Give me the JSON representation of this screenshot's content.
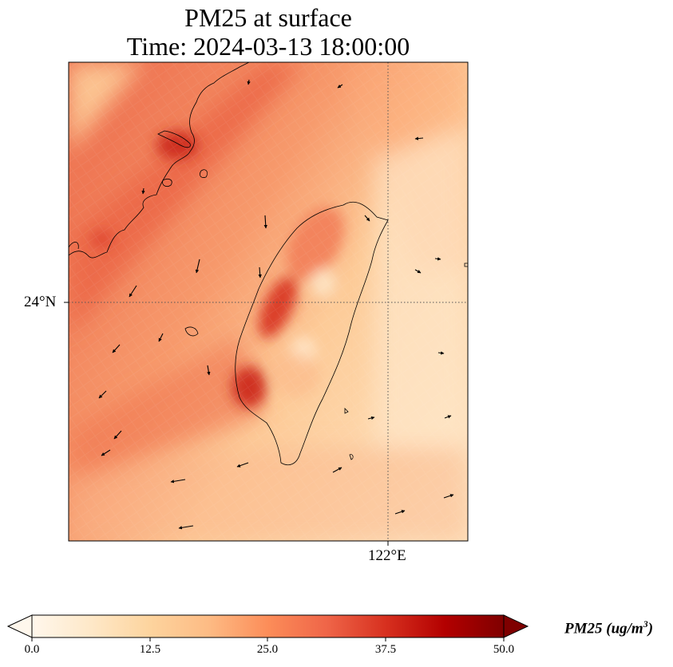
{
  "title": {
    "line1": "PM25 at surface",
    "line2": "Time: 2024-03-13 18:00:00"
  },
  "map": {
    "lat_label": "24°N",
    "lon_label": "122°E",
    "gridlines": "dotted",
    "colormap": "OrRd"
  },
  "colorbar": {
    "label": "PM25 (ug/m",
    "label_sup": "3",
    "label_close": ")",
    "ticks": [
      "0.0",
      "12.5",
      "25.0",
      "37.5",
      "50.0"
    ],
    "min": 0.0,
    "max": 50.0,
    "extend": "both",
    "colors": [
      "#fff7ec",
      "#fee8c8",
      "#fdd49e",
      "#fdbb84",
      "#fc8d59",
      "#ef6548",
      "#d7301f",
      "#b30000",
      "#7f0000"
    ]
  }
}
